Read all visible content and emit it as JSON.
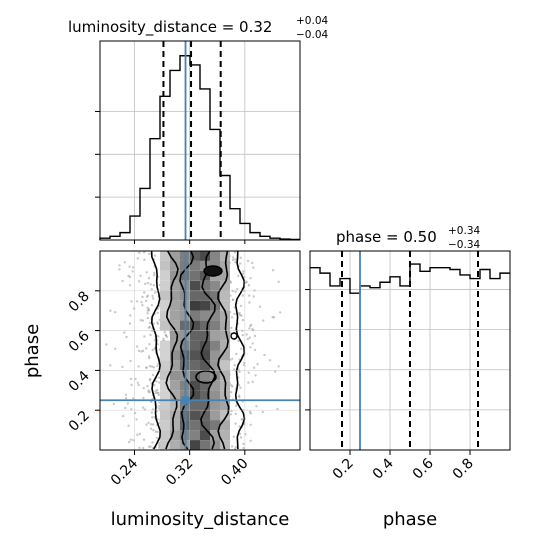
{
  "chart_data": {
    "type": "corner",
    "parameters": [
      "luminosity_distance",
      "phase"
    ],
    "colors": {
      "truth": "#4682b4",
      "hist": "#000000",
      "grid": "#bfbfbf",
      "scatter": "#9a9a9a"
    },
    "titles": {
      "luminosity_distance": {
        "prefix": "luminosity_distance = ",
        "median": "0.32",
        "plus": "+0.04",
        "minus": "−0.04"
      },
      "phase": {
        "prefix": "phase = ",
        "median": "0.50",
        "plus": "+0.34",
        "minus": "−0.34"
      }
    },
    "truth": {
      "luminosity_distance": 0.314,
      "phase": 0.25
    },
    "quantiles": {
      "luminosity_distance": [
        0.282,
        0.322,
        0.365
      ],
      "phase": [
        0.16,
        0.5,
        0.84
      ]
    },
    "axes": {
      "luminosity_distance": {
        "lim": [
          0.19,
          0.48
        ],
        "ticks": [
          0.24,
          0.32,
          0.4
        ],
        "ticklabels": [
          "0.24",
          "0.32",
          "0.40"
        ],
        "label": "luminosity_distance"
      },
      "phase": {
        "lim": [
          0.0,
          1.0
        ],
        "ticks": [
          0.2,
          0.4,
          0.6,
          0.8
        ],
        "ticklabels": [
          "0.2",
          "0.4",
          "0.6",
          "0.8"
        ],
        "label": "phase"
      }
    },
    "hist_luminosity_distance": {
      "edges": [
        0.19,
        0.2045,
        0.219,
        0.2335,
        0.248,
        0.2625,
        0.277,
        0.2915,
        0.306,
        0.3205,
        0.335,
        0.3495,
        0.364,
        0.3785,
        0.393,
        0.4075,
        0.422,
        0.4365,
        0.451,
        0.4655,
        0.48
      ],
      "counts": [
        1,
        2,
        4,
        13,
        28,
        55,
        78,
        92,
        100,
        95,
        82,
        60,
        35,
        17,
        9,
        4,
        2,
        1,
        0.5,
        0.3
      ]
    },
    "hist_phase": {
      "edges": [
        0.0,
        0.05,
        0.1,
        0.15,
        0.2,
        0.25,
        0.3,
        0.35,
        0.4,
        0.45,
        0.5,
        0.55,
        0.6,
        0.65,
        0.7,
        0.75,
        0.8,
        0.85,
        0.9,
        0.95,
        1.0
      ],
      "counts": [
        100,
        97,
        90,
        94,
        86,
        90,
        89,
        92,
        95,
        90,
        102,
        98,
        100,
        100,
        99,
        96,
        94,
        99,
        94,
        97
      ]
    }
  }
}
